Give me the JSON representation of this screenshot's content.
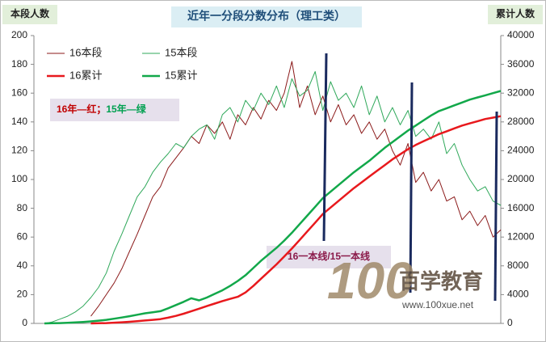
{
  "chart_data": {
    "type": "line",
    "title": "近年一分段分数分布（理工类）",
    "ylabel": "本段人数",
    "y2label": "累计人数",
    "ylim": [
      0,
      200
    ],
    "yticks": [
      0,
      20,
      40,
      60,
      80,
      100,
      120,
      140,
      160,
      180,
      200
    ],
    "y2lim": [
      0,
      40000
    ],
    "y2ticks": [
      0,
      4000,
      8000,
      12000,
      16000,
      20000,
      24000,
      28000,
      32000,
      36000,
      40000
    ],
    "legend": "upper left",
    "categories": [
      null,
      null,
      null,
      null,
      null,
      null,
      null,
      null,
      null,
      null,
      null,
      null,
      null,
      null,
      null,
      null,
      null,
      null,
      null,
      null,
      null,
      null,
      null,
      null,
      null,
      null,
      null,
      null,
      null,
      null,
      null,
      null,
      null,
      null,
      null,
      null,
      null,
      null,
      null,
      null,
      null,
      null,
      null,
      null,
      null,
      null,
      null,
      null,
      null,
      null,
      null,
      null,
      null,
      null,
      null,
      null,
      null,
      null,
      null,
      null
    ],
    "series": [
      {
        "name": "16本段",
        "color": "#8b1a1a",
        "width": 1,
        "values": [
          null,
          null,
          null,
          null,
          null,
          null,
          5,
          12,
          20,
          28,
          38,
          50,
          62,
          75,
          88,
          95,
          108,
          115,
          122,
          130,
          125,
          138,
          132,
          140,
          128,
          145,
          138,
          150,
          142,
          155,
          148,
          160,
          182,
          150,
          165,
          145,
          158,
          140,
          152,
          138,
          145,
          132,
          140,
          128,
          135,
          120,
          110,
          125,
          98,
          105,
          92,
          100,
          85,
          88,
          72,
          78,
          68,
          75,
          60,
          65
        ]
      },
      {
        "name": "15本段",
        "color": "#2fa85a",
        "width": 1,
        "values": [
          0,
          1,
          3,
          5,
          8,
          12,
          18,
          25,
          35,
          50,
          62,
          75,
          88,
          95,
          105,
          112,
          118,
          125,
          122,
          130,
          135,
          138,
          128,
          145,
          150,
          140,
          155,
          148,
          160,
          152,
          165,
          150,
          170,
          158,
          162,
          175,
          148,
          168,
          155,
          160,
          150,
          165,
          145,
          158,
          140,
          150,
          138,
          148,
          130,
          135,
          128,
          140,
          118,
          125,
          110,
          100,
          92,
          95,
          85,
          82
        ]
      },
      {
        "name": "16累计",
        "color": "#e8191d",
        "width": 2.5,
        "axis": "y2",
        "values": [
          null,
          null,
          null,
          null,
          null,
          null,
          0,
          20,
          50,
          100,
          160,
          230,
          310,
          400,
          500,
          600,
          800,
          1050,
          1350,
          1700,
          2050,
          2400,
          2750,
          3100,
          3400,
          3700,
          4300,
          5200,
          6200,
          7200,
          8200,
          9300,
          10400,
          11600,
          12800,
          14000,
          15200,
          16100,
          17000,
          17900,
          18800,
          19600,
          20400,
          21200,
          22000,
          22800,
          23500,
          24200,
          24800,
          25300,
          25800,
          26300,
          26700,
          27100,
          27500,
          27800,
          28100,
          28400,
          28600,
          28800
        ]
      },
      {
        "name": "15累计",
        "color": "#12a84a",
        "width": 2.5,
        "axis": "y2",
        "values": [
          0,
          20,
          50,
          90,
          140,
          200,
          280,
          380,
          500,
          650,
          820,
          1000,
          1200,
          1400,
          1550,
          1700,
          2100,
          2550,
          3000,
          3500,
          3200,
          3600,
          4100,
          4600,
          5200,
          5900,
          6700,
          7700,
          8700,
          9600,
          10500,
          11500,
          12600,
          13800,
          15000,
          16200,
          17400,
          18300,
          19200,
          20100,
          21000,
          21800,
          22600,
          23500,
          24400,
          25200,
          26000,
          26800,
          27500,
          28200,
          28900,
          29500,
          29900,
          30300,
          30700,
          31100,
          31400,
          31700,
          32000,
          32300
        ]
      }
    ],
    "annotations": [
      {
        "text": "16年—红",
        "color": "#c00000"
      },
      {
        "text": "；",
        "color": "#c00000"
      },
      {
        "text": "15年—绿",
        "color": "#00a050"
      },
      {
        "text": "16一本线/15一本线",
        "color": "#8b1a4a"
      }
    ],
    "watermark": {
      "logo": "100",
      "name": "百学教育",
      "url": "www.100xue.net"
    }
  }
}
